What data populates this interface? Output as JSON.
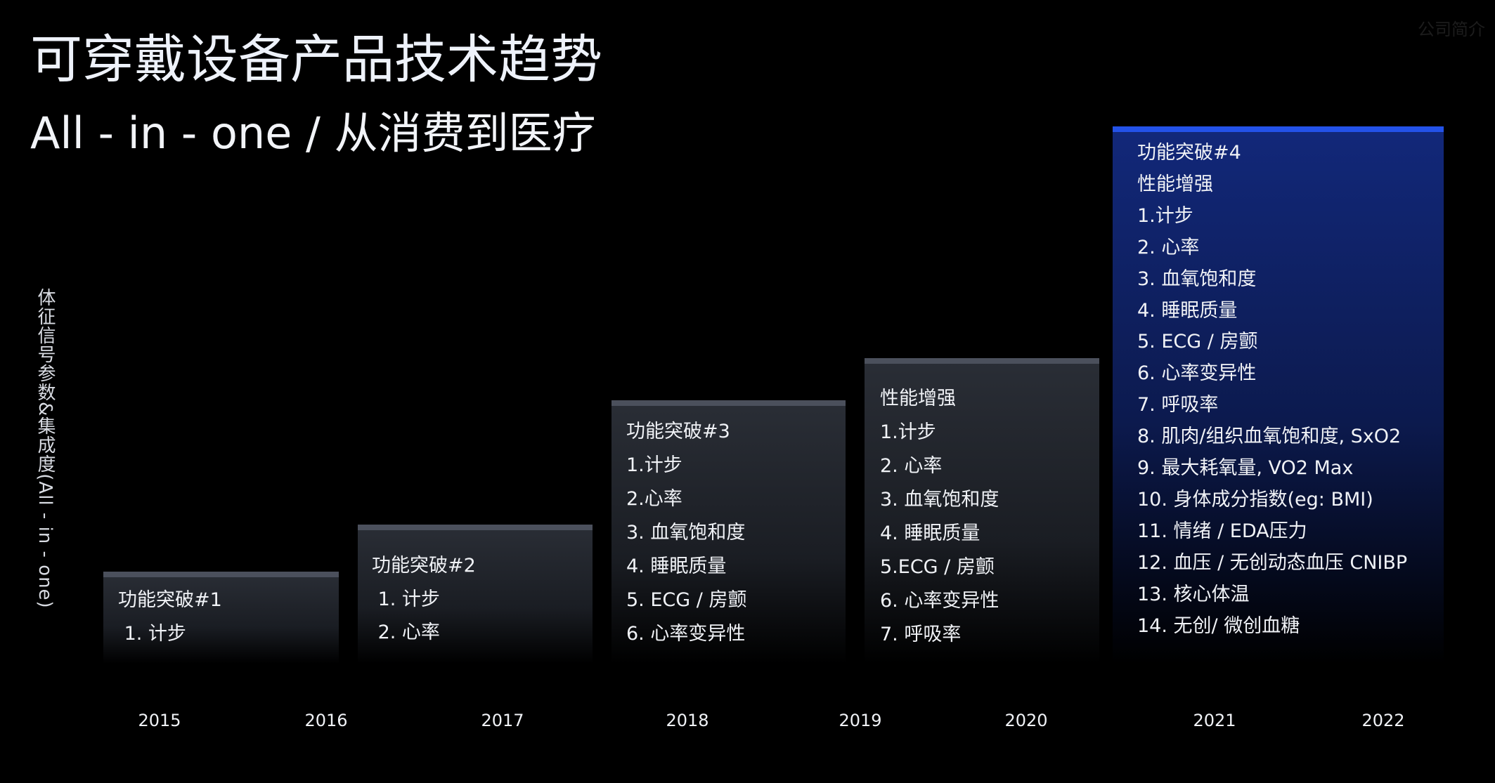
{
  "header": {
    "title": "可穿戴设备产品技术趋势",
    "subtitle": "All - in - one / 从消费到医疗",
    "watermark": "公司简介"
  },
  "axis_label": "体征信号参数&集成度(All - in - one)",
  "blocks": [
    {
      "lines": [
        "功能突破#1",
        " 1. 计步"
      ]
    },
    {
      "lines": [
        "功能突破#2",
        " 1. 计步",
        " 2. 心率"
      ]
    },
    {
      "lines": [
        "功能突破#3",
        "1.计步",
        "2.心率",
        "3. 血氧饱和度",
        "4. 睡眠质量",
        "5. ECG / 房颤",
        "6. 心率变异性"
      ]
    },
    {
      "lines": [
        "性能增强",
        "1.计步",
        "2. 心率",
        "3. 血氧饱和度",
        "4. 睡眠质量",
        "5.ECG / 房颤",
        "6. 心率变异性",
        "7. 呼吸率"
      ]
    },
    {
      "lines": [
        "功能突破#4",
        "性能增强",
        "1.计步",
        "2. 心率",
        "3. 血氧饱和度",
        "4. 睡眠质量",
        "5. ECG / 房颤",
        "6. 心率变异性",
        "7. 呼吸率",
        "8. 肌肉/组织血氧饱和度, SxO2",
        "9. 最大耗氧量, VO2 Max",
        "10. 身体成分指数(eg: BMI)",
        "11. 情绪 / EDA压力",
        "12. 血压 / 无创动态血压 CNIBP",
        "13. 核心体温",
        "14. 无创/ 微创血糖"
      ]
    }
  ],
  "years": [
    "2015",
    "2016",
    "2017",
    "2018",
    "2019",
    "2020",
    "2021",
    "2022"
  ]
}
